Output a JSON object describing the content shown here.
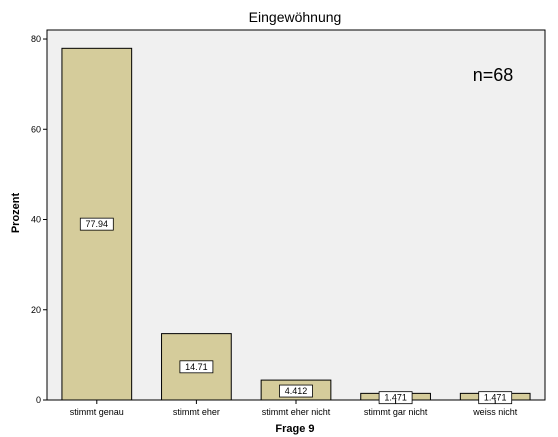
{
  "chart_data": {
    "type": "bar",
    "title": "Eingewöhnung",
    "xlabel": "Frage 9",
    "ylabel": "Prozent",
    "annotation": "n=68",
    "categories": [
      "stimmt genau",
      "stimmt eher",
      "stimmt eher nicht",
      "stimmt gar nicht",
      "weiss nicht"
    ],
    "values": [
      77.94,
      14.71,
      4.412,
      1.471,
      1.471
    ],
    "data_labels": [
      "77.94",
      "14.71",
      "4.412",
      "1.471",
      "1.471"
    ],
    "yticks": [
      0,
      20,
      40,
      60,
      80
    ],
    "ylim": [
      0,
      82
    ],
    "grid": false,
    "colors": {
      "bar_fill": "#d5cc9b",
      "bar_stroke": "#000000",
      "plot_background": "#f0f0f0",
      "page_background": "#ffffff"
    }
  }
}
